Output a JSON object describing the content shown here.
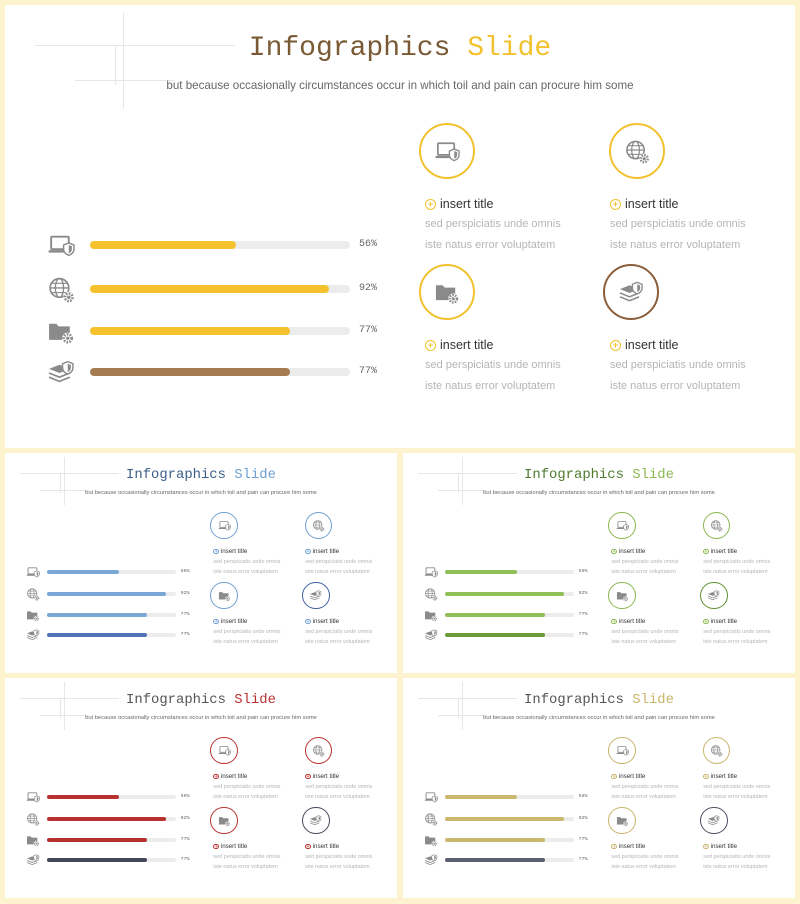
{
  "slides": [
    {
      "title_main": "Infographics",
      "title_accent": "Slide",
      "subtitle": "but because occasionally circumstances occur in which toil and pain can procure him some",
      "title_color": "#7a5a35",
      "accent_color": "#f2c12e",
      "bars": [
        {
          "icon": "laptop-shield-icon",
          "value": 0.56,
          "label": "56%",
          "color": "#f5c22e"
        },
        {
          "icon": "globe-gear-icon",
          "value": 0.92,
          "label": "92%",
          "color": "#f5c22e"
        },
        {
          "icon": "folder-gear-icon",
          "value": 0.77,
          "label": "77%",
          "color": "#f5c22e"
        },
        {
          "icon": "money-shield-icon",
          "value": 0.77,
          "label": "77%",
          "color": "#a57c52"
        }
      ],
      "cards": [
        {
          "icon": "laptop-shield-icon",
          "ring": "#f2c12e",
          "title": "insert title",
          "line1": "sed perspiciatis unde omnis",
          "line2": "iste natus error voluptatem"
        },
        {
          "icon": "globe-gear-icon",
          "ring": "#f2c12e",
          "title": "insert title",
          "line1": "sed perspiciatis unde omnis",
          "line2": "iste natus error voluptatem"
        },
        {
          "icon": "folder-gear-icon",
          "ring": "#f2c12e",
          "title": "insert title",
          "line1": "sed perspiciatis unde omnis",
          "line2": "iste natus error voluptatem"
        },
        {
          "icon": "money-shield-icon",
          "ring": "#8b5e3c",
          "title": "insert title",
          "line1": "sed perspiciatis unde omnis",
          "line2": "iste natus error voluptatem"
        }
      ],
      "plus_color": "#f2c12e"
    },
    {
      "title_main": "Infographics",
      "title_accent": "Slide",
      "subtitle": "but because occasionally circumstances occur in which toil and pain can procure him some",
      "title_color": "#3c5f8a",
      "accent_color": "#6fa0d0",
      "bars": [
        {
          "icon": "laptop-shield-icon",
          "value": 0.56,
          "label": "56%",
          "color": "#7ba7d6"
        },
        {
          "icon": "globe-gear-icon",
          "value": 0.92,
          "label": "92%",
          "color": "#7ba7d6"
        },
        {
          "icon": "folder-gear-icon",
          "value": 0.77,
          "label": "77%",
          "color": "#7ba7d6"
        },
        {
          "icon": "money-shield-icon",
          "value": 0.77,
          "label": "77%",
          "color": "#4f74b3"
        }
      ],
      "cards": [
        {
          "icon": "laptop-shield-icon",
          "ring": "#6fa0d0",
          "title": "insert title",
          "line1": "sed perspiciatis unde omnis",
          "line2": "iste natus error voluptatem"
        },
        {
          "icon": "globe-gear-icon",
          "ring": "#6fa0d0",
          "title": "insert title",
          "line1": "sed perspiciatis unde omnis",
          "line2": "iste natus error voluptatem"
        },
        {
          "icon": "folder-gear-icon",
          "ring": "#6fa0d0",
          "title": "insert title",
          "line1": "sed perspiciatis unde omnis",
          "line2": "iste natus error voluptatem"
        },
        {
          "icon": "money-shield-icon",
          "ring": "#3f5f9e",
          "title": "insert title",
          "line1": "sed perspiciatis unde omnis",
          "line2": "iste natus error voluptatem"
        }
      ],
      "plus_color": "#6fa0d0"
    },
    {
      "title_main": "Infographics",
      "title_accent": "Slide",
      "subtitle": "but because occasionally circumstances occur in which toil and pain can procure him some",
      "title_color": "#4f7a2e",
      "accent_color": "#8ab84f",
      "bars": [
        {
          "icon": "laptop-shield-icon",
          "value": 0.56,
          "label": "56%",
          "color": "#8fbf56"
        },
        {
          "icon": "globe-gear-icon",
          "value": 0.92,
          "label": "92%",
          "color": "#8fbf56"
        },
        {
          "icon": "folder-gear-icon",
          "value": 0.77,
          "label": "77%",
          "color": "#8fbf56"
        },
        {
          "icon": "money-shield-icon",
          "value": 0.77,
          "label": "77%",
          "color": "#6a9a3a"
        }
      ],
      "cards": [
        {
          "icon": "laptop-shield-icon",
          "ring": "#8ab84f",
          "title": "insert title",
          "line1": "sed perspiciatis unde omnis",
          "line2": "iste natus error voluptatem"
        },
        {
          "icon": "globe-gear-icon",
          "ring": "#8ab84f",
          "title": "insert title",
          "line1": "sed perspiciatis unde omnis",
          "line2": "iste natus error voluptatem"
        },
        {
          "icon": "folder-gear-icon",
          "ring": "#8ab84f",
          "title": "insert title",
          "line1": "sed perspiciatis unde omnis",
          "line2": "iste natus error voluptatem"
        },
        {
          "icon": "money-shield-icon",
          "ring": "#5f8f32",
          "title": "insert title",
          "line1": "sed perspiciatis unde omnis",
          "line2": "iste natus error voluptatem"
        }
      ],
      "plus_color": "#8ab84f"
    },
    {
      "title_main": "Infographics",
      "title_accent": "Slide",
      "subtitle": "but because occasionally circumstances occur in which toil and pain can procure him some",
      "title_color": "#555555",
      "accent_color": "#b9312f",
      "bars": [
        {
          "icon": "laptop-shield-icon",
          "value": 0.56,
          "label": "56%",
          "color": "#b9312f"
        },
        {
          "icon": "globe-gear-icon",
          "value": 0.92,
          "label": "92%",
          "color": "#b9312f"
        },
        {
          "icon": "folder-gear-icon",
          "value": 0.77,
          "label": "77%",
          "color": "#b9312f"
        },
        {
          "icon": "money-shield-icon",
          "value": 0.77,
          "label": "77%",
          "color": "#44475a"
        }
      ],
      "cards": [
        {
          "icon": "laptop-shield-icon",
          "ring": "#b9312f",
          "title": "insert title",
          "line1": "sed perspiciatis unde omnis",
          "line2": "iste natus error voluptatem"
        },
        {
          "icon": "globe-gear-icon",
          "ring": "#b9312f",
          "title": "insert title",
          "line1": "sed perspiciatis unde omnis",
          "line2": "iste natus error voluptatem"
        },
        {
          "icon": "folder-gear-icon",
          "ring": "#b9312f",
          "title": "insert title",
          "line1": "sed perspiciatis unde omnis",
          "line2": "iste natus error voluptatem"
        },
        {
          "icon": "money-shield-icon",
          "ring": "#44475a",
          "title": "insert title",
          "line1": "sed perspiciatis unde omnis",
          "line2": "iste natus error voluptatem"
        }
      ],
      "plus_color": "#b9312f"
    },
    {
      "title_main": "Infographics",
      "title_accent": "Slide",
      "subtitle": "but because occasionally circumstances occur in which toil and pain can procure him some",
      "title_color": "#555555",
      "accent_color": "#c9b46a",
      "bars": [
        {
          "icon": "laptop-shield-icon",
          "value": 0.56,
          "label": "56%",
          "color": "#ccb86e"
        },
        {
          "icon": "globe-gear-icon",
          "value": 0.92,
          "label": "92%",
          "color": "#ccb86e"
        },
        {
          "icon": "folder-gear-icon",
          "value": 0.77,
          "label": "77%",
          "color": "#ccb86e"
        },
        {
          "icon": "money-shield-icon",
          "value": 0.77,
          "label": "77%",
          "color": "#5a6070"
        }
      ],
      "cards": [
        {
          "icon": "laptop-shield-icon",
          "ring": "#c9b46a",
          "title": "insert title",
          "line1": "sed perspiciatis unde omnis",
          "line2": "iste natus error voluptatem"
        },
        {
          "icon": "globe-gear-icon",
          "ring": "#c9b46a",
          "title": "insert title",
          "line1": "sed perspiciatis unde omnis",
          "line2": "iste natus error voluptatem"
        },
        {
          "icon": "folder-gear-icon",
          "ring": "#c9b46a",
          "title": "insert title",
          "line1": "sed perspiciatis unde omnis",
          "line2": "iste natus error voluptatem"
        },
        {
          "icon": "money-shield-icon",
          "ring": "#4a5060",
          "title": "insert title",
          "line1": "sed perspiciatis unde omnis",
          "line2": "iste natus error voluptatem"
        }
      ],
      "plus_color": "#c9b46a"
    }
  ]
}
